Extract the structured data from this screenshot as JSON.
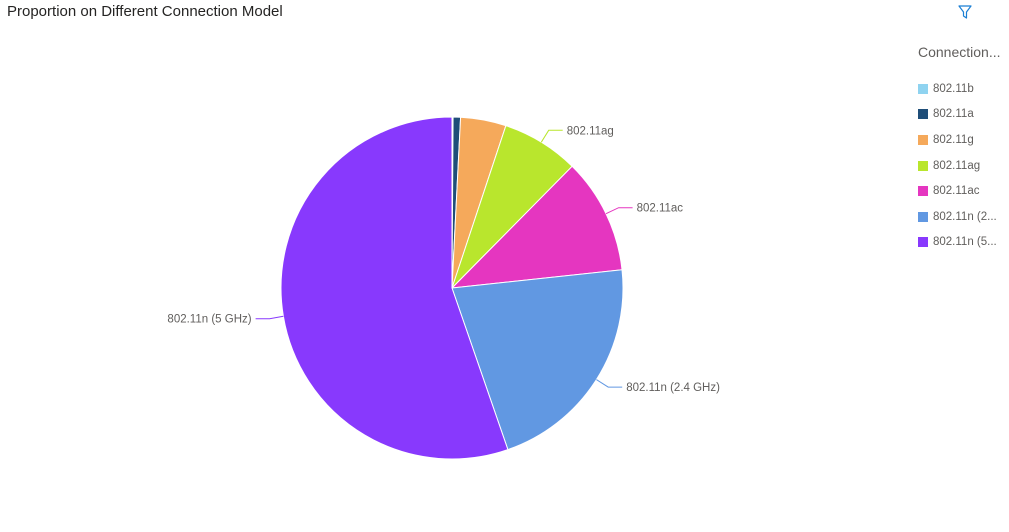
{
  "header": {
    "title": "Proportion on Different Connection Model",
    "filter_icon": "filter-icon"
  },
  "legend": {
    "title": "Connection...",
    "placement": "right",
    "items": [
      {
        "label": "802.11b",
        "color": "#8fd3f0"
      },
      {
        "label": "802.11a",
        "color": "#1f4e79"
      },
      {
        "label": "802.11g",
        "color": "#f5a95b"
      },
      {
        "label": "802.11ag",
        "color": "#b9e62d"
      },
      {
        "label": "802.11ac",
        "color": "#e536c0"
      },
      {
        "label": "802.11n (2...",
        "color": "#6198e2"
      },
      {
        "label": "802.11n (5...",
        "color": "#8839fd"
      }
    ]
  },
  "chart_data": {
    "type": "pie",
    "title": "Proportion on Different Connection Model",
    "legend_title": "Connection...",
    "slices": [
      {
        "name": "802.11b",
        "value": 0.1,
        "color": "#8fd3f0",
        "label": ""
      },
      {
        "name": "802.11a",
        "value": 0.7,
        "color": "#1f4e79",
        "label": ""
      },
      {
        "name": "802.11g",
        "value": 4.3,
        "color": "#f5a95b",
        "label": ""
      },
      {
        "name": "802.11ag",
        "value": 7.3,
        "color": "#b9e62d",
        "label": "802.11ag"
      },
      {
        "name": "802.11ac",
        "value": 10.9,
        "color": "#e536c0",
        "label": "802.11ac"
      },
      {
        "name": "802.11n (2.4 GHz)",
        "value": 21.4,
        "color": "#6198e2",
        "label": "802.11n (2.4 GHz)"
      },
      {
        "name": "802.11n (5 GHz)",
        "value": 55.3,
        "color": "#8839fd",
        "label": "802.11n (5 GHz)"
      }
    ]
  }
}
